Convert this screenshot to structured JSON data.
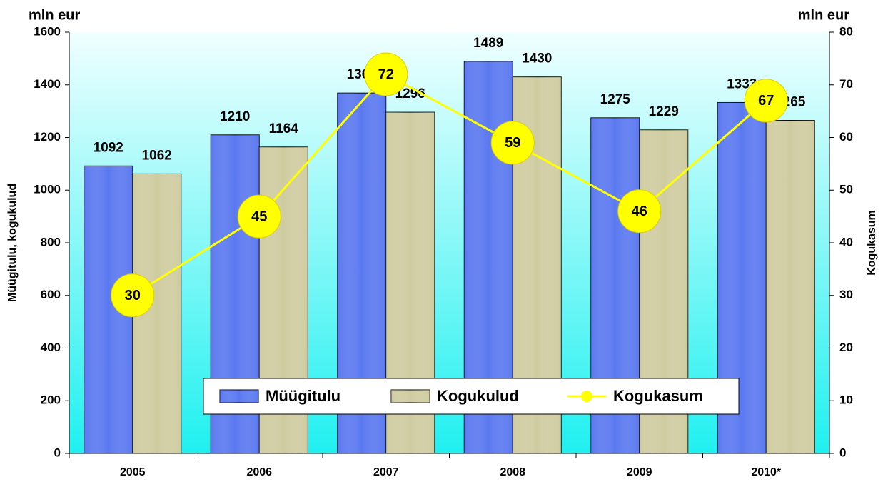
{
  "chart_data": {
    "type": "bar_line",
    "y_unit": "mln eur",
    "y2_unit": "mln eur",
    "ylabel": "Müügitulu, kogukulud",
    "y2label": "Kogukasum",
    "categories": [
      "2005",
      "2006",
      "2007",
      "2008",
      "2009",
      "2010*"
    ],
    "series": [
      {
        "name": "Müügitulu",
        "type": "bar",
        "color": "#5a78f0",
        "values": [
          1092,
          1210,
          1369,
          1489,
          1275,
          1333
        ]
      },
      {
        "name": "Kogukulud",
        "type": "bar",
        "color": "#cfcba0",
        "values": [
          1062,
          1164,
          1296,
          1430,
          1229,
          1265
        ]
      },
      {
        "name": "Kogukasum",
        "type": "line",
        "axis": "y2",
        "color": "#ffff00",
        "values": [
          30,
          45,
          72,
          59,
          46,
          67
        ]
      }
    ],
    "ylim": [
      0,
      1600
    ],
    "yticks": [
      0,
      200,
      400,
      600,
      800,
      1000,
      1200,
      1400,
      1600
    ],
    "y2lim": [
      0,
      80
    ],
    "y2ticks": [
      0,
      10,
      20,
      30,
      40,
      50,
      60,
      70,
      80
    ],
    "legend": "bottom",
    "background": [
      "#f0ffff",
      "#20f0f0"
    ]
  }
}
